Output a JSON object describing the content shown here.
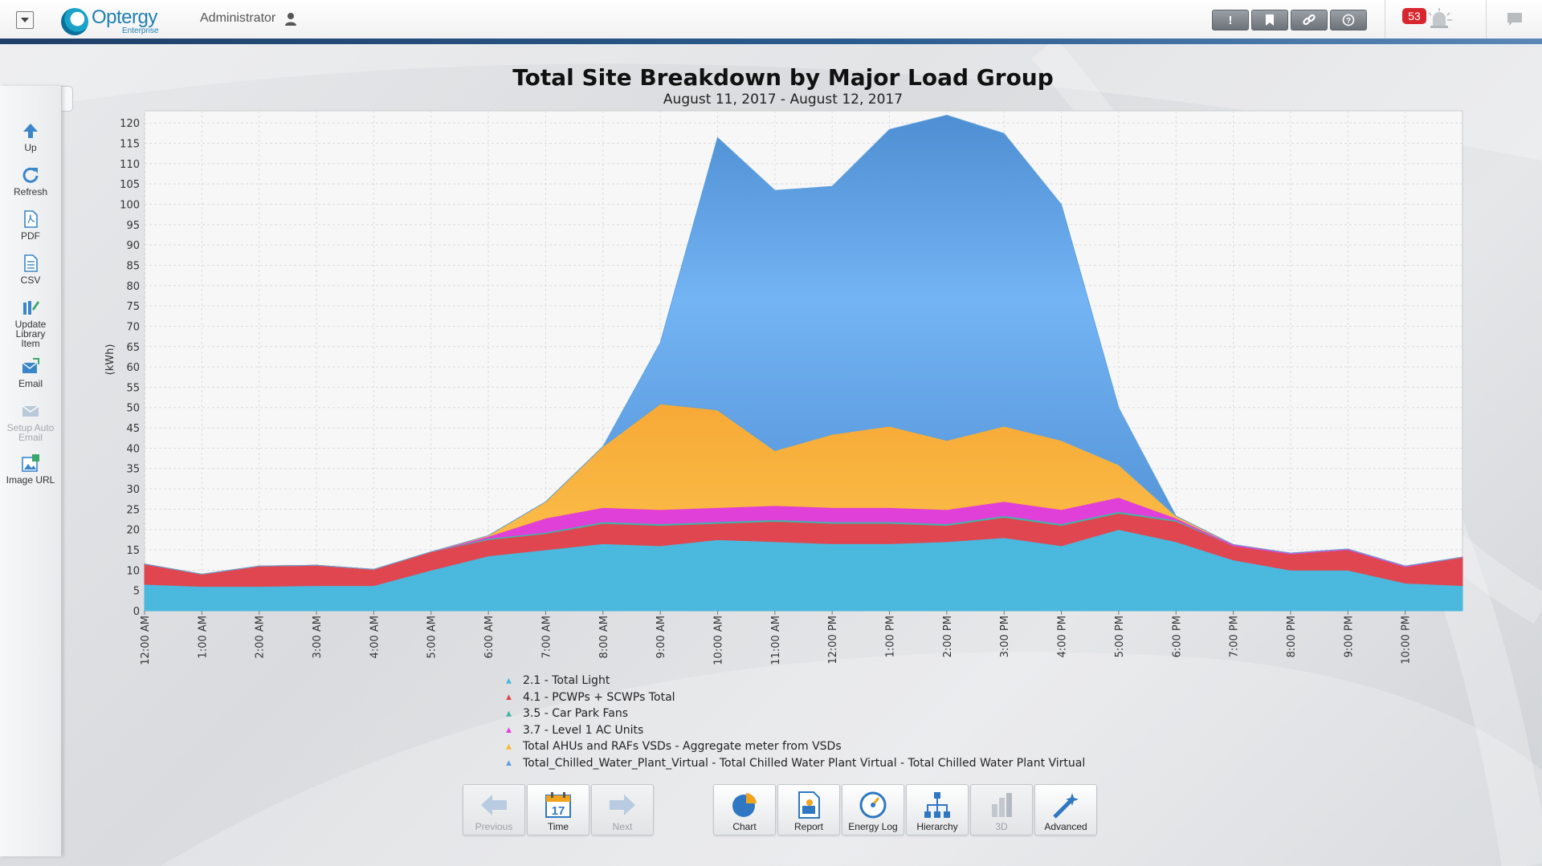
{
  "topbar": {
    "logo_text": "Optergy",
    "logo_sub": "Enterprise",
    "user": "Administrator",
    "buttons": [
      "alert-icon",
      "bookmark-icon",
      "link-icon",
      "help-icon"
    ],
    "alarm_count": "53"
  },
  "sidebar": {
    "items": [
      {
        "label": "Up",
        "icon": "up-arrow-icon",
        "enabled": true
      },
      {
        "label": "Refresh",
        "icon": "refresh-icon",
        "enabled": true
      },
      {
        "label": "PDF",
        "icon": "pdf-icon",
        "enabled": true
      },
      {
        "label": "CSV",
        "icon": "csv-icon",
        "enabled": true
      },
      {
        "label": "Update Library Item",
        "icon": "library-icon",
        "enabled": true
      },
      {
        "label": "Email",
        "icon": "email-icon",
        "enabled": true
      },
      {
        "label": "Setup Auto Email",
        "icon": "auto-email-icon",
        "enabled": false
      },
      {
        "label": "Image URL",
        "icon": "image-url-icon",
        "enabled": true
      }
    ]
  },
  "toolbar": {
    "previous": "Previous",
    "time": "Time",
    "time_day": "17",
    "next": "Next",
    "chart": "Chart",
    "report": "Report",
    "energy_log": "Energy Log",
    "hierarchy": "Hierarchy",
    "three_d": "3D",
    "advanced": "Advanced"
  },
  "chart_data": {
    "type": "area",
    "stacked": true,
    "title": "Total Site Breakdown by Major Load Group",
    "subtitle": "August 11, 2017 - August 12, 2017",
    "ylabel": "(kWh)",
    "ylim": [
      0,
      123
    ],
    "yticks": [
      0,
      5,
      10,
      15,
      20,
      25,
      30,
      35,
      40,
      45,
      50,
      55,
      60,
      65,
      70,
      75,
      80,
      85,
      90,
      95,
      100,
      105,
      110,
      115,
      120
    ],
    "x_tick_labels": [
      "12:00 AM",
      "1:00 AM",
      "2:00 AM",
      "3:00 AM",
      "4:00 AM",
      "5:00 AM",
      "6:00 AM",
      "7:00 AM",
      "8:00 AM",
      "9:00 AM",
      "10:00 AM",
      "11:00 AM",
      "12:00 PM",
      "1:00 PM",
      "2:00 PM",
      "3:00 PM",
      "4:00 PM",
      "5:00 PM",
      "6:00 PM",
      "7:00 PM",
      "8:00 PM",
      "9:00 PM",
      "10:00 PM"
    ],
    "x": [
      0,
      1,
      2,
      3,
      4,
      5,
      6,
      7,
      8,
      9,
      10,
      11,
      12,
      13,
      14,
      15,
      16,
      17,
      18,
      19,
      20,
      21,
      22,
      23
    ],
    "series": [
      {
        "name": "2.1  - Total Light",
        "color": "#4bb8de",
        "values": [
          6.5,
          6,
          6,
          6.2,
          6.2,
          10,
          13.5,
          15,
          16.5,
          16,
          17.5,
          17,
          16.5,
          16.5,
          17,
          18,
          16,
          20,
          17,
          12.5,
          10,
          10,
          6.8,
          6.2
        ]
      },
      {
        "name": "4.1 - PCWPs + SCWPs Total",
        "color": "#e0464f",
        "values": [
          5,
          3,
          5,
          5,
          4,
          4.5,
          4,
          4,
          5,
          5,
          4,
          5,
          5,
          5,
          4,
          5,
          5,
          4,
          5,
          3.5,
          4,
          5,
          4,
          7
        ]
      },
      {
        "name": "3.5 - Car Park Fans",
        "color": "#3fb7a8",
        "values": [
          0,
          0,
          0,
          0,
          0,
          0,
          0.3,
          0.3,
          0.4,
          0.4,
          0.4,
          0.4,
          0.4,
          0.4,
          0.4,
          0.4,
          0.4,
          0.4,
          0.3,
          0,
          0,
          0,
          0,
          0
        ]
      },
      {
        "name": "3.7 - Level 1 AC Units",
        "color": "#e040d8",
        "values": [
          0,
          0,
          0,
          0,
          0,
          0,
          0.5,
          3.5,
          3.5,
          3.5,
          3.5,
          3.5,
          3.5,
          3.5,
          3.5,
          3.5,
          3.5,
          3.5,
          0.5,
          0.3,
          0.2,
          0.2,
          0.2,
          0
        ]
      },
      {
        "name": "Total AHUs and RAFs VSDs - Aggregate meter from VSDs",
        "color": "#fbb63a",
        "values": [
          0,
          0,
          0,
          0,
          0,
          0,
          0.2,
          4,
          15,
          26,
          24,
          13.5,
          18,
          20,
          17,
          18.5,
          17,
          8,
          0.5,
          0,
          0,
          0,
          0,
          0
        ]
      },
      {
        "name": "Total_Chilled_Water_Plant_Virtual - Total Chilled Water Plant Virtual - Total Chilled Water Plant Virtual",
        "color": "#5ea0df",
        "values": [
          0,
          0,
          0,
          0,
          0,
          0,
          0,
          0,
          0,
          15,
          67,
          64,
          61,
          73,
          80,
          72,
          58,
          14,
          0,
          0,
          0,
          0,
          0,
          0
        ]
      }
    ],
    "legend_position": "bottom"
  }
}
